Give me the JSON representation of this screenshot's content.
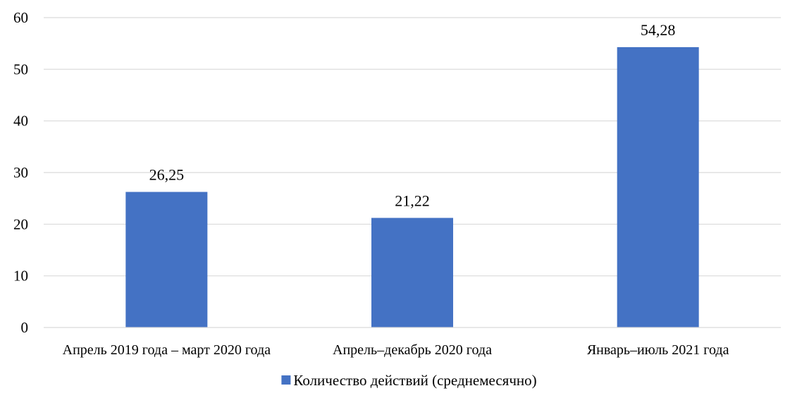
{
  "chart_data": {
    "type": "bar",
    "categories": [
      "Апрель 2019 года – март 2020 года",
      "Апрель–декабрь 2020 года",
      "Январь–июль 2021 года"
    ],
    "series": [
      {
        "name": "Количество действий (среднемесячно)",
        "values": [
          26.25,
          21.22,
          54.28
        ],
        "value_labels": [
          "26,25",
          "21,22",
          "54,28"
        ],
        "color": "#4472C4"
      }
    ],
    "ylim": [
      0,
      60
    ],
    "yticks": [
      0,
      10,
      20,
      30,
      40,
      50,
      60
    ],
    "grid": true,
    "grid_color": "#D9D9D9",
    "legend_position": "bottom"
  }
}
